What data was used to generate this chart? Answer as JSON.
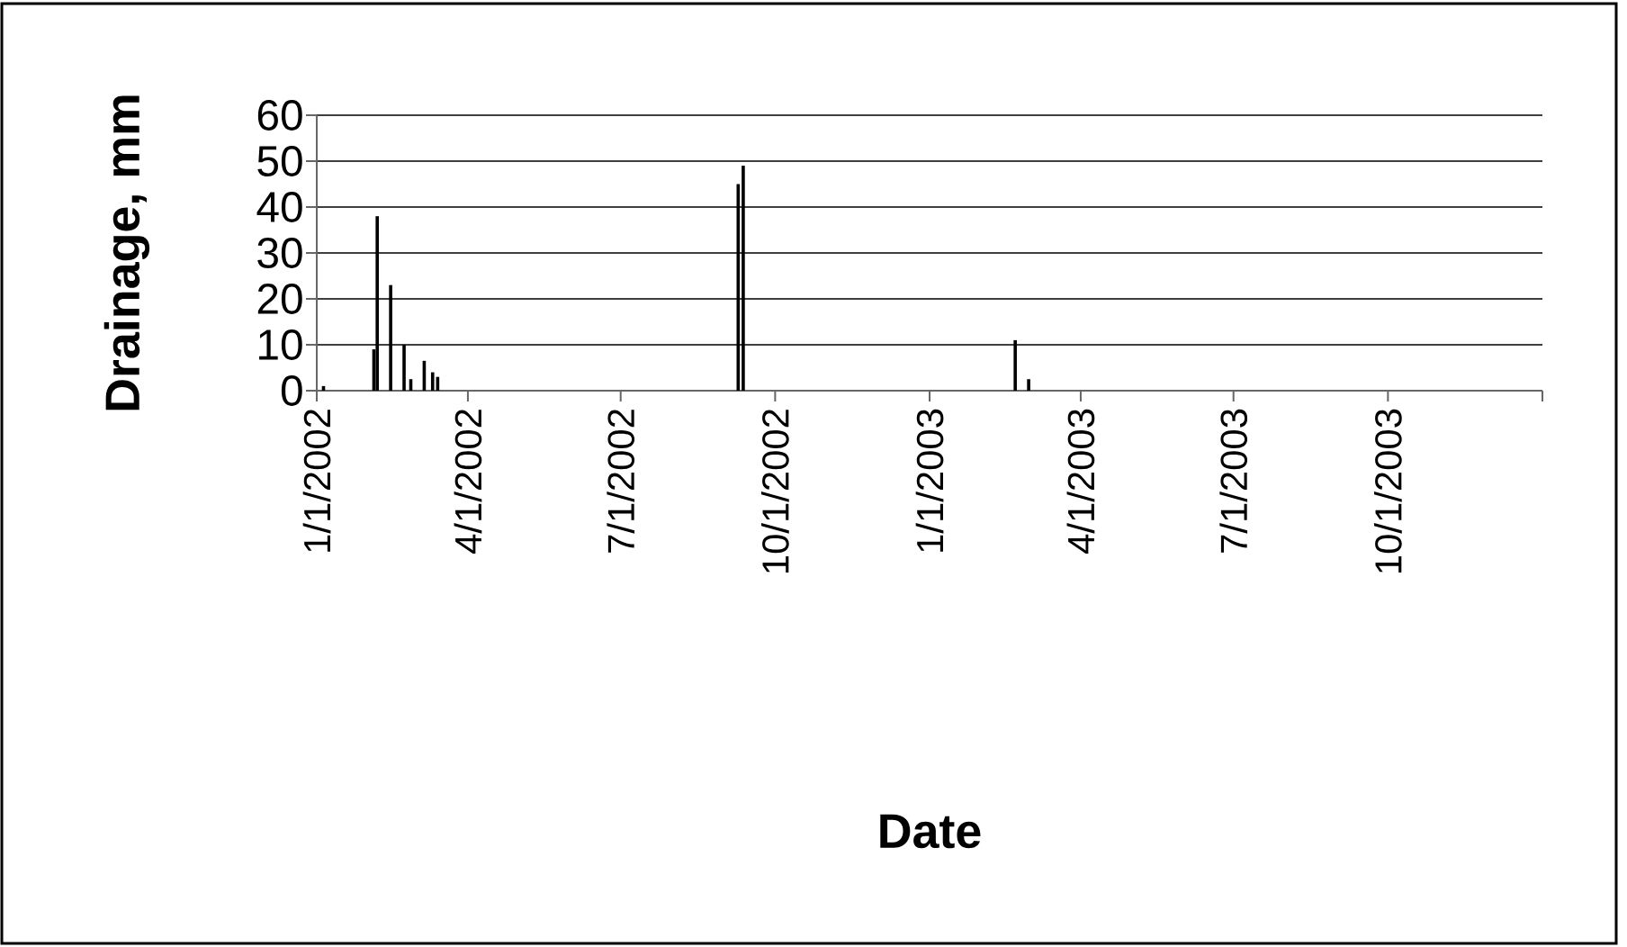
{
  "chart_data": {
    "type": "bar",
    "xlabel": "Date",
    "ylabel": "Drainage, mm",
    "x": [
      "2002-01-05",
      "2002-02-04",
      "2002-02-06",
      "2002-02-14",
      "2002-02-22",
      "2002-02-26",
      "2002-03-06",
      "2002-03-11",
      "2002-03-14",
      "2002-09-09",
      "2002-09-12",
      "2003-02-21",
      "2003-03-01"
    ],
    "values": [
      1,
      9,
      38,
      23,
      10,
      2.5,
      6.5,
      4,
      3,
      45,
      49,
      11,
      2.5
    ],
    "color": "#000000",
    "xlim": [
      "2002-01-01",
      "2004-01-01"
    ],
    "xticks": [
      {
        "value": "2002-01-01",
        "label": "1/1/2002"
      },
      {
        "value": "2002-04-01",
        "label": "4/1/2002"
      },
      {
        "value": "2002-07-01",
        "label": "7/1/2002"
      },
      {
        "value": "2002-10-01",
        "label": "10/1/2002"
      },
      {
        "value": "2003-01-01",
        "label": "1/1/2003"
      },
      {
        "value": "2003-04-01",
        "label": "4/1/2003"
      },
      {
        "value": "2003-07-01",
        "label": "7/1/2003"
      },
      {
        "value": "2003-10-01",
        "label": "10/1/2003"
      },
      {
        "value": "2004-01-01",
        "label": null
      }
    ],
    "ylim": [
      0,
      60
    ],
    "yticks": [
      0,
      10,
      20,
      30,
      40,
      50,
      60
    ],
    "grid": "y"
  }
}
